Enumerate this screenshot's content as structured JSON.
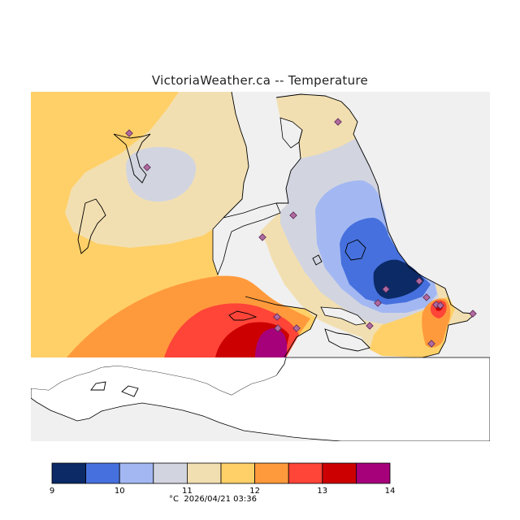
{
  "title": "VictoriaWeather.ca -- Temperature",
  "legend": {
    "unit": "°C",
    "timestamp": "2026/04/21 03:36",
    "ticks": [
      "9",
      "10",
      "11",
      "12",
      "13",
      "14"
    ],
    "colors": [
      "#0b2a66",
      "#4670dd",
      "#a3b8f2",
      "#d2d5e0",
      "#f2dfb1",
      "#ffd068",
      "#ff9a3c",
      "#ff4438",
      "#cc0000",
      "#a6007a"
    ]
  },
  "chart_data": {
    "type": "heatmap",
    "title": "VictoriaWeather.ca -- Temperature",
    "variable": "Temperature",
    "unit": "°C",
    "range": [
      9,
      14
    ],
    "bins": [
      [
        9,
        9.5
      ],
      [
        9.5,
        10
      ],
      [
        10,
        10.5
      ],
      [
        10.5,
        11
      ],
      [
        11,
        11.5
      ],
      [
        11.5,
        12
      ],
      [
        12,
        12.5
      ],
      [
        12.5,
        13
      ],
      [
        13,
        13.5
      ],
      [
        13.5,
        14
      ]
    ],
    "timestamp": "2026/04/21 03:36"
  }
}
